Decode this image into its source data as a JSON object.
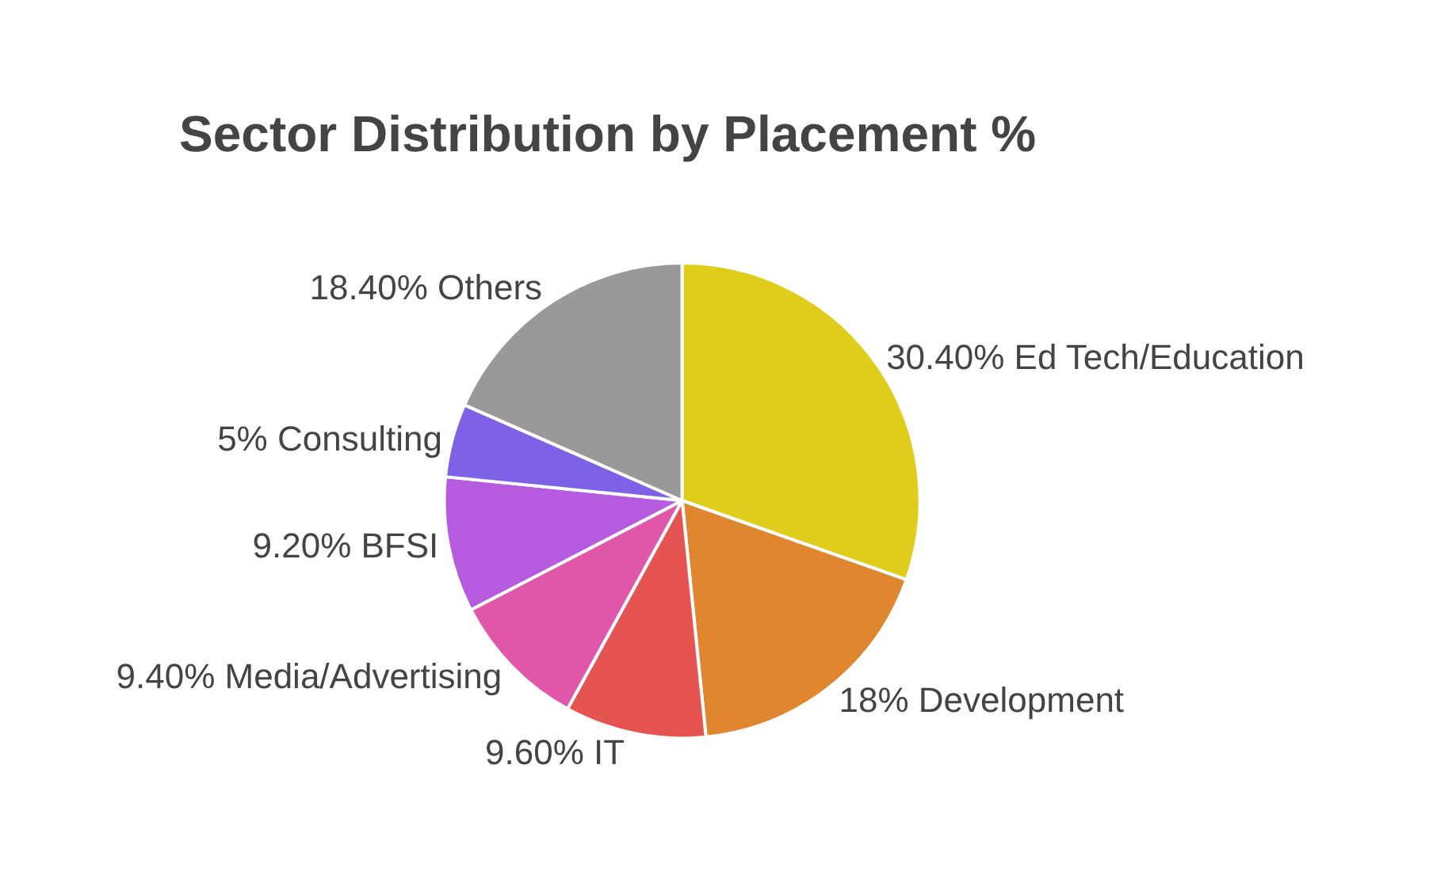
{
  "chart_data": {
    "type": "pie",
    "title": "Sector Distribution by Placement %",
    "categories": [
      "Ed Tech/Education",
      "Development",
      "IT",
      "Media/Advertising",
      "BFSI",
      "Consulting",
      "Others"
    ],
    "values": [
      30.4,
      18,
      9.6,
      9.4,
      9.2,
      5,
      18.4
    ],
    "value_labels": [
      "30.40%",
      "18%",
      "9.60%",
      "9.40%",
      "9.20%",
      "5%",
      "18.40%"
    ],
    "colors": [
      "#e0cc1a",
      "#e0862e",
      "#e65452",
      "#e056a8",
      "#b65ae0",
      "#7d62e8",
      "#999999"
    ],
    "legend": false
  }
}
